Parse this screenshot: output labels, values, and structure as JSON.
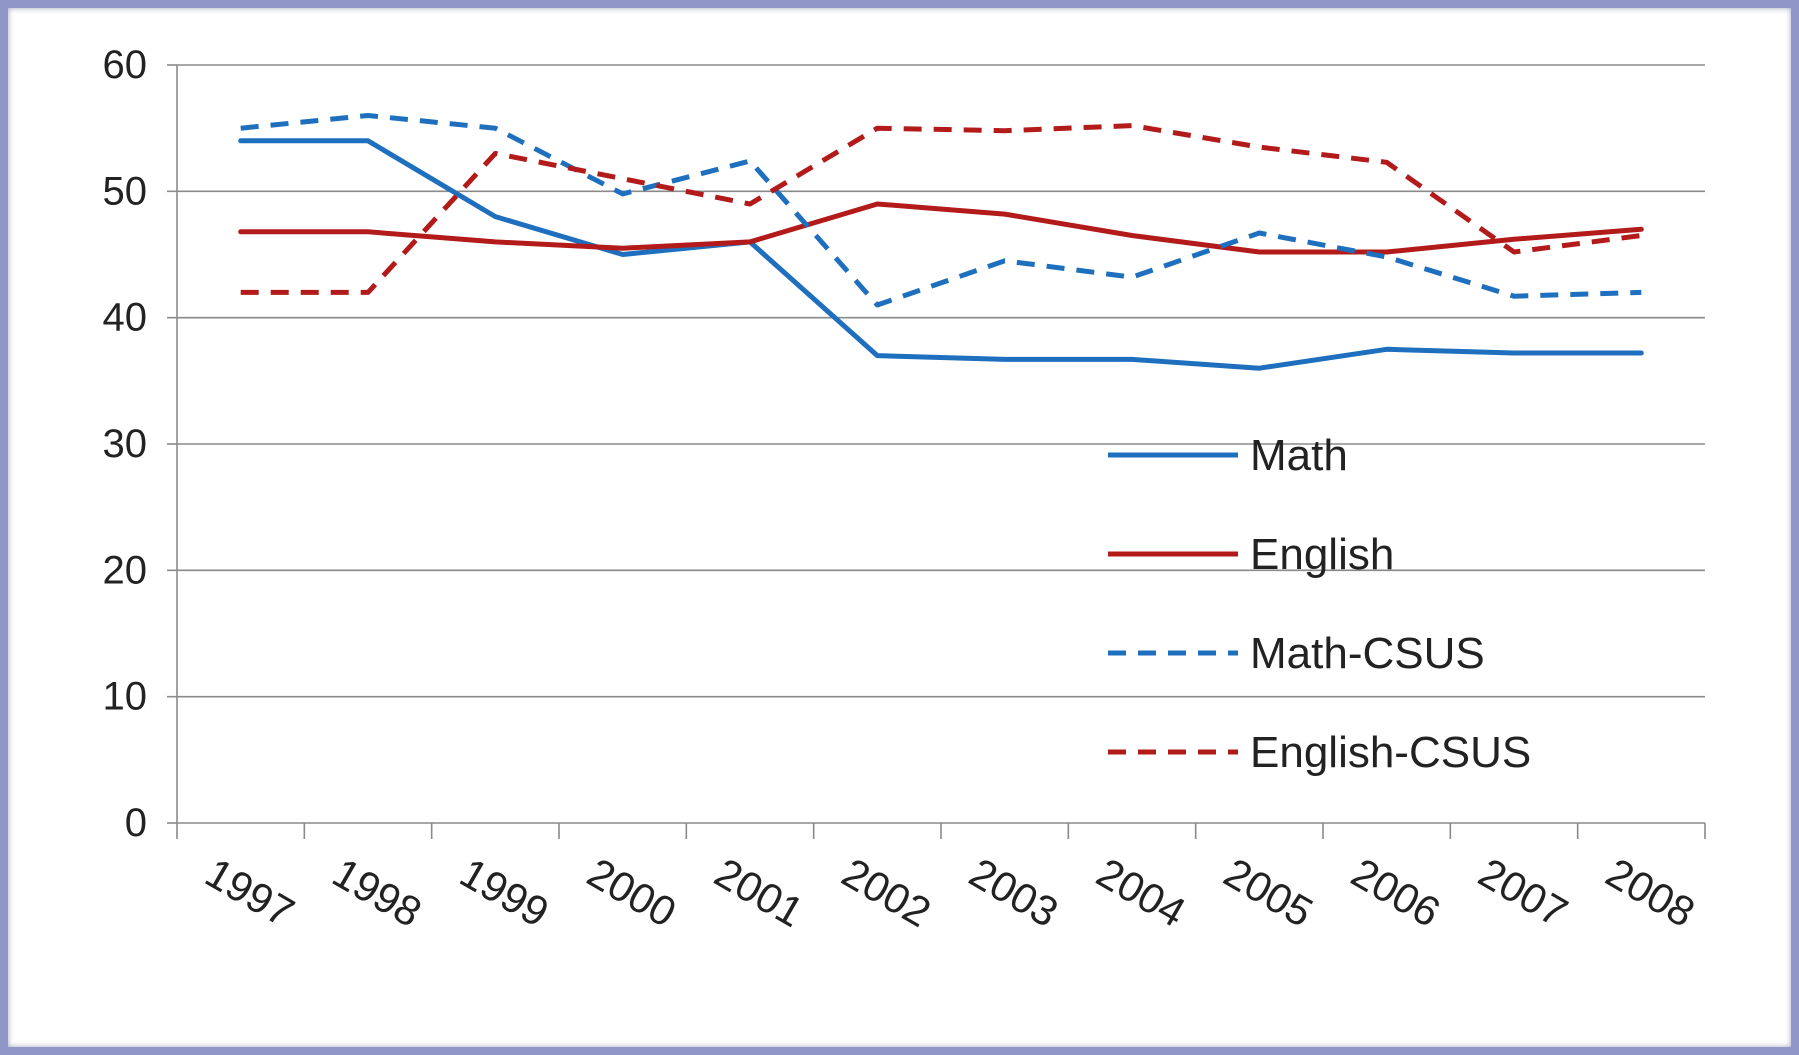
{
  "chart_data": {
    "type": "line",
    "title": "",
    "xlabel": "",
    "ylabel": "",
    "ylim": [
      0,
      60
    ],
    "yticks": [
      0,
      10,
      20,
      30,
      40,
      50,
      60
    ],
    "grid": true,
    "legend_position": "right-center",
    "categories": [
      "1997",
      "1998",
      "1999",
      "2000",
      "2001",
      "2002",
      "2003",
      "2004",
      "2005",
      "2006",
      "2007",
      "2008"
    ],
    "series": [
      {
        "name": "Math",
        "color": "#1f6fbf",
        "dashed": false,
        "values": [
          54,
          54,
          48,
          45,
          46,
          37,
          36.7,
          36.7,
          36,
          37.5,
          37.2,
          37.2
        ]
      },
      {
        "name": "English",
        "color": "#b31b1b",
        "dashed": false,
        "values": [
          46.8,
          46.8,
          46,
          45.5,
          46,
          49,
          48.2,
          46.5,
          45.2,
          45.2,
          46.2,
          47
        ]
      },
      {
        "name": "Math-CSUS",
        "color": "#1f6fbf",
        "dashed": true,
        "values": [
          55,
          56,
          55,
          49.8,
          52.4,
          41,
          44.5,
          43.2,
          46.7,
          44.8,
          41.7,
          42
        ]
      },
      {
        "name": "English-CSUS",
        "color": "#b31b1b",
        "dashed": true,
        "values": [
          42,
          42,
          53,
          51,
          49,
          55,
          54.8,
          55.2,
          53.5,
          52.3,
          45.2,
          46.5
        ]
      }
    ]
  }
}
